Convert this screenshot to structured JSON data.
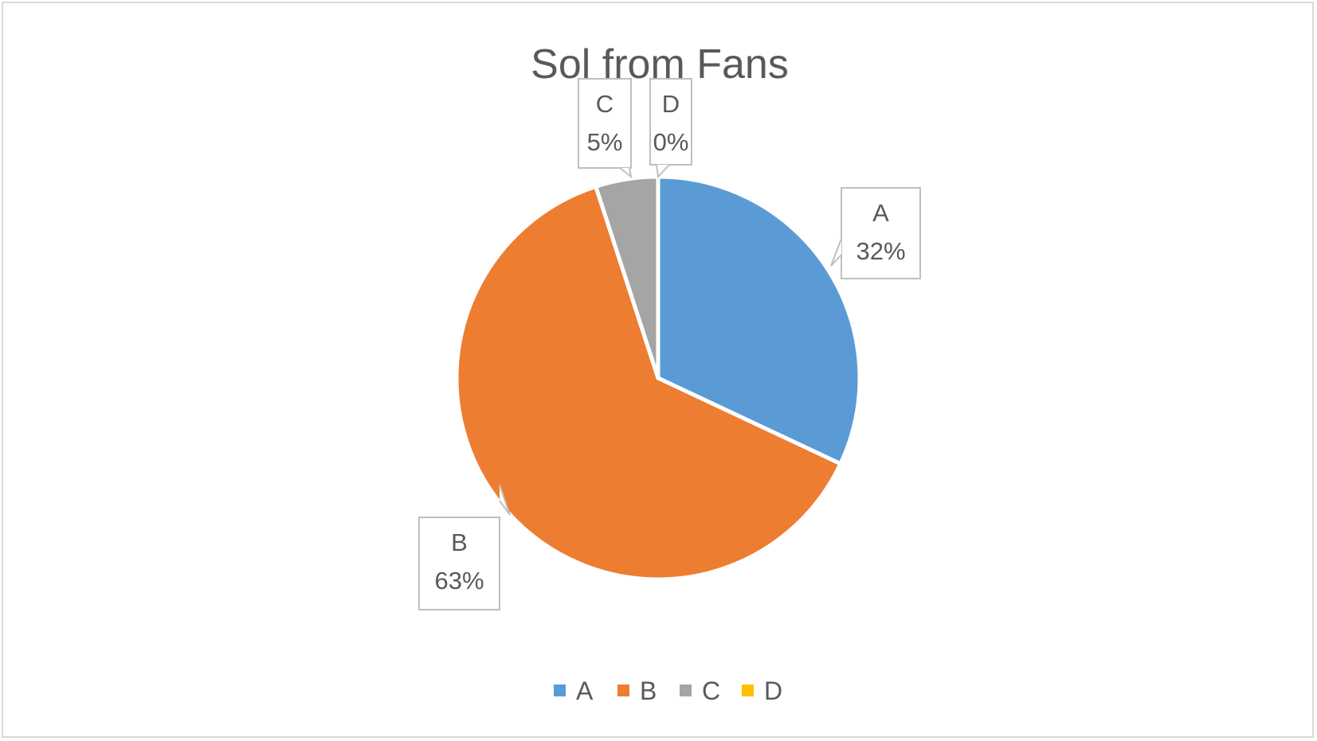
{
  "chart_data": {
    "type": "pie",
    "title": "Sol from Fans",
    "categories": [
      "A",
      "B",
      "C",
      "D"
    ],
    "values": [
      32,
      63,
      5,
      0
    ],
    "unit": "%",
    "data_labels": [
      {
        "category": "A",
        "value": "32%"
      },
      {
        "category": "B",
        "value": "63%"
      },
      {
        "category": "C",
        "value": "5%"
      },
      {
        "category": "D",
        "value": "0%"
      }
    ],
    "colors": [
      "#5b9bd5",
      "#ed7d31",
      "#a5a5a5",
      "#ffc000"
    ],
    "legend": {
      "position": "bottom",
      "entries": [
        "A",
        "B",
        "C",
        "D"
      ]
    }
  }
}
